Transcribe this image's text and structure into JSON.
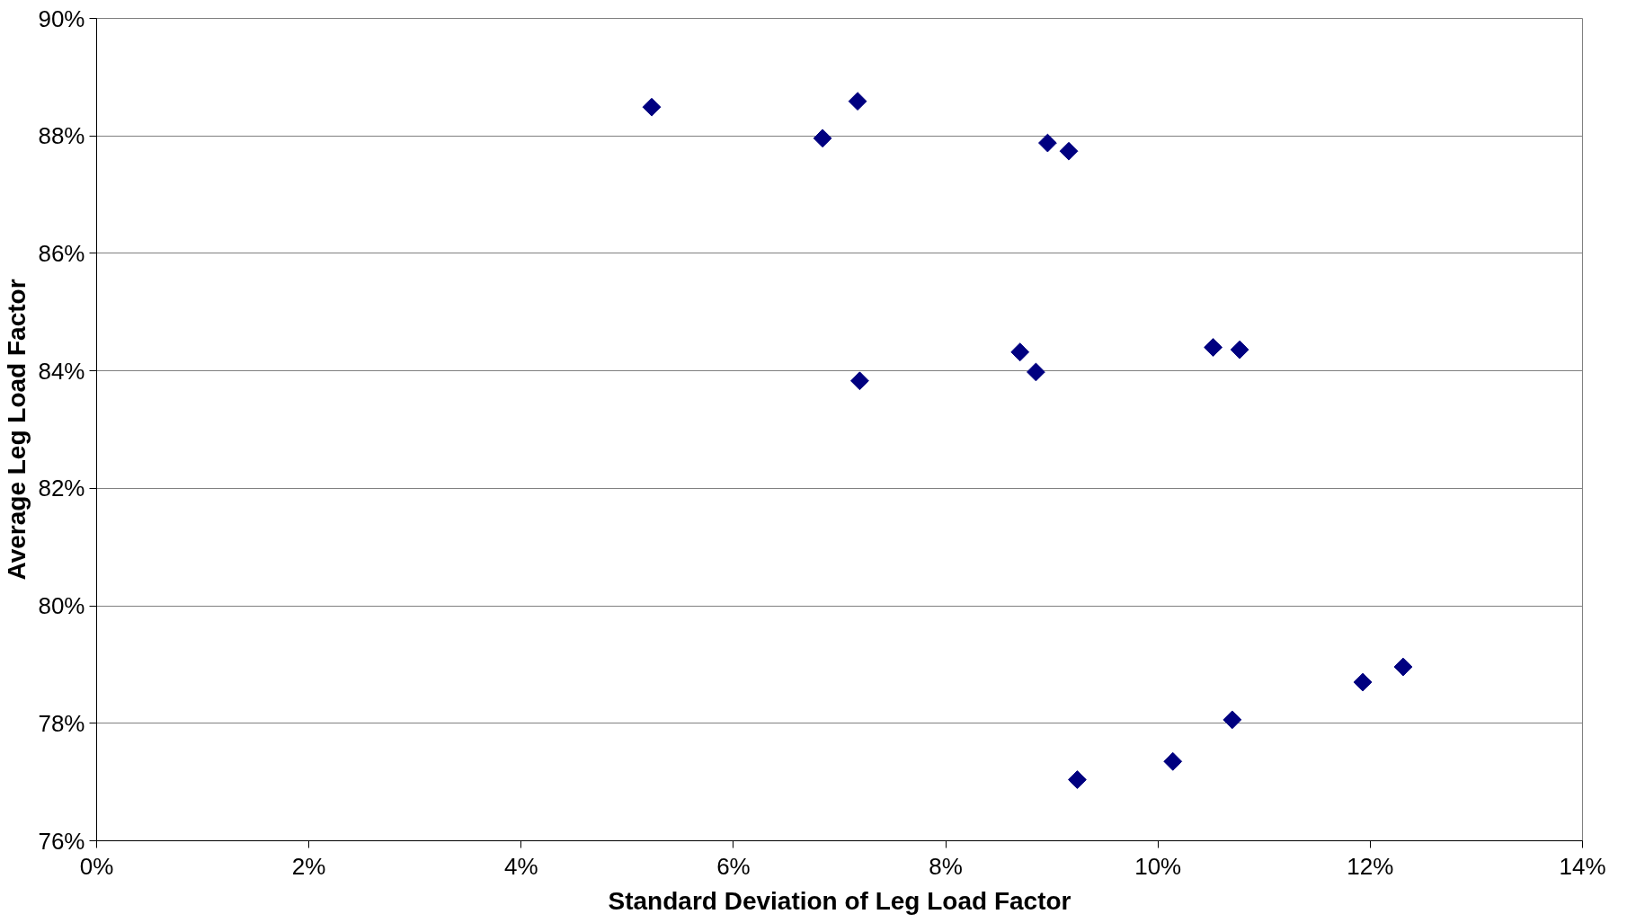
{
  "chart_data": {
    "type": "scatter",
    "xlabel": "Standard Deviation of Leg Load Factor",
    "ylabel": "Average Leg Load Factor",
    "x": [
      5.23,
      6.84,
      7.17,
      8.96,
      9.16,
      7.19,
      8.7,
      8.85,
      10.52,
      10.77,
      11.93,
      12.31,
      10.7,
      9.24,
      10.14
    ],
    "series": [
      {
        "color": "#000080",
        "values": [
          88.49,
          87.96,
          88.59,
          87.88,
          87.74,
          83.83,
          84.32,
          83.98,
          84.4,
          84.36,
          78.7,
          78.96,
          78.06,
          77.04,
          77.35
        ]
      }
    ],
    "xlim": [
      0,
      14
    ],
    "ylim": [
      76,
      90
    ],
    "xticks": [
      {
        "value": 0,
        "label": "0%"
      },
      {
        "value": 2,
        "label": "2%"
      },
      {
        "value": 4,
        "label": "4%"
      },
      {
        "value": 6,
        "label": "6%"
      },
      {
        "value": 8,
        "label": "8%"
      },
      {
        "value": 10,
        "label": "10%"
      },
      {
        "value": 12,
        "label": "12%"
      },
      {
        "value": 14,
        "label": "14%"
      }
    ],
    "yticks": [
      {
        "value": 76,
        "label": "76%"
      },
      {
        "value": 78,
        "label": "78%"
      },
      {
        "value": 80,
        "label": "80%"
      },
      {
        "value": 82,
        "label": "82%"
      },
      {
        "value": 84,
        "label": "84%"
      },
      {
        "value": 86,
        "label": "86%"
      },
      {
        "value": 88,
        "label": "88%"
      },
      {
        "value": 90,
        "label": "90%"
      }
    ],
    "grid": "y",
    "marker": "diamond"
  }
}
